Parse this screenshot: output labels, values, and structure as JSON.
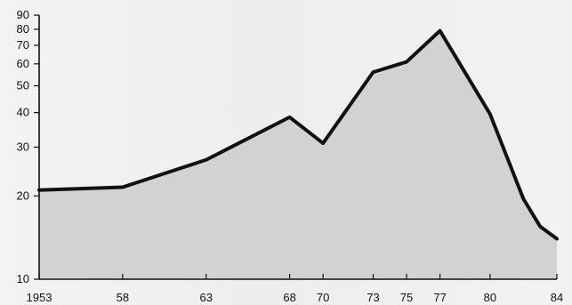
{
  "chart_data": {
    "type": "area",
    "title": "",
    "xlabel": "",
    "ylabel": "",
    "y_scale": "log",
    "xlim": [
      1953,
      1984
    ],
    "ylim": [
      10,
      90
    ],
    "x_tick_labels": [
      "1953",
      "58",
      "63",
      "68",
      "70",
      "73",
      "75",
      "77",
      "80",
      "84"
    ],
    "x_tick_values": [
      1953,
      1958,
      1963,
      1968,
      1970,
      1973,
      1975,
      1977,
      1980,
      1984
    ],
    "y_ticks": [
      10,
      20,
      30,
      40,
      50,
      60,
      70,
      80,
      90
    ],
    "series": [
      {
        "x": [
          1953,
          1958,
          1963,
          1968,
          1970,
          1973,
          1975,
          1977,
          1980,
          1982,
          1983,
          1984
        ],
        "y": [
          21,
          21.5,
          27,
          38.5,
          31,
          56,
          61,
          79,
          39.5,
          19.5,
          15.5,
          14
        ]
      }
    ],
    "grid": false,
    "legend": "none",
    "colors": {
      "line": "#111111",
      "fill": "#cfcfcd",
      "axis": "#111111"
    }
  }
}
